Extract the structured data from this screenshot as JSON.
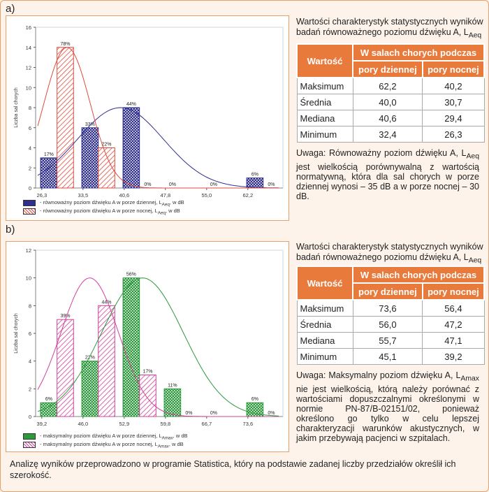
{
  "part_a_label": "a)",
  "part_b_label": "b)",
  "chart_data": [
    {
      "type": "bar",
      "ylabel": "Liczba sal chorych",
      "ylim": [
        0,
        16
      ],
      "yticks": [
        "0",
        "2",
        "4",
        "6",
        "8",
        "10",
        "12",
        "14",
        "16"
      ],
      "xticks": [
        "26,3",
        "33,5",
        "40,6",
        "47,8",
        "55,0",
        "62,2"
      ],
      "series": [
        {
          "name": "- równoważny poziom dźwięku A w porze dziennej, L",
          "name_sub": "Aeq",
          "name_suffix": ", w dB",
          "color": "#2f2f8f",
          "values": [
            3,
            6,
            8,
            0,
            0,
            1
          ],
          "labels": [
            "17%",
            "33%",
            "44%",
            "0%",
            "0%",
            "6%"
          ],
          "curve_mean": 40.0,
          "curve_sd": 7.5
        },
        {
          "name": "- równoważny poziom dźwięku A w porze nocnej, L",
          "name_sub": "Aeq",
          "name_suffix": ", w dB",
          "color": "#e04a3c",
          "values": [
            14,
            4,
            0,
            0,
            0,
            0
          ],
          "labels": [
            "78%",
            "22%",
            "0%",
            "0%",
            "0%",
            "0%"
          ],
          "curve_mean": 30.7,
          "curve_sd": 4.0
        }
      ],
      "x_bins": [
        26.3,
        33.5,
        40.6,
        47.8,
        55.0,
        62.2
      ]
    },
    {
      "type": "bar",
      "ylabel": "Liczba sal chorych",
      "ylim": [
        0,
        12
      ],
      "yticks": [
        "0",
        "2",
        "4",
        "6",
        "8",
        "10",
        "12"
      ],
      "xticks": [
        "39,2",
        "46,0",
        "52,9",
        "59,8",
        "66,7",
        "73,6"
      ],
      "series": [
        {
          "name": "- maksymalny poziom dźwięku A w porze dziennej, L",
          "name_sub": "Amax",
          "name_suffix": ", w dB",
          "color": "#2a9a3a",
          "values": [
            1,
            4,
            10,
            2,
            0,
            1
          ],
          "labels": [
            "6%",
            "22%",
            "56%",
            "11%",
            "0%",
            "6%"
          ],
          "curve_mean": 56.0,
          "curve_sd": 6.8
        },
        {
          "name": "- maksymalny poziom dźwięku A w porze nocnej, L",
          "name_sub": "Amax",
          "name_suffix": ", w dB",
          "color": "#d0409a",
          "values": [
            7,
            8,
            3,
            0,
            0,
            0
          ],
          "labels": [
            "39%",
            "44%",
            "17%",
            "0%",
            "0%",
            "0%"
          ],
          "curve_mean": 47.2,
          "curve_sd": 4.8
        }
      ],
      "x_bins": [
        39.2,
        46.0,
        52.9,
        59.8,
        66.7,
        73.6
      ]
    }
  ],
  "tables": [
    {
      "title_line1": "Wartości charakterystyk statystycznych wyników",
      "title_line2": "badań równoważnego poziomu dźwięku A, L",
      "title_sub": "Aeq",
      "header_col1": "Wartość",
      "header_group": "W salach chorych podczas",
      "header_day": "pory dziennej",
      "header_night": "pory nocnej",
      "rows": [
        {
          "label": "Maksimum",
          "day": "62,2",
          "night": "40,2"
        },
        {
          "label": "Średnia",
          "day": "40,0",
          "night": "30,7"
        },
        {
          "label": "Mediana",
          "day": "40,6",
          "night": "29,4"
        },
        {
          "label": "Minimum",
          "day": "32,4",
          "night": "26,3"
        }
      ],
      "note_pre": "Uwaga: Równoważny poziom dźwięku A, L",
      "note_sub": "Aeq",
      "note_post": " jest wielkością porównywalną z wartością normatywną, która dla sal chorych w porze dziennej wynosi – 35 dB a w porze nocnej – 30 dB."
    },
    {
      "title_line1": "Wartości charakterystyk statystycznych wyników",
      "title_line2": "badań równoważnego poziomu dźwięku A, L",
      "title_sub": "Aeq",
      "header_col1": "Wartość",
      "header_group": "W salach chorych podczas",
      "header_day": "pory dziennej",
      "header_night": "pory nocnej",
      "rows": [
        {
          "label": "Maksimum",
          "day": "73,6",
          "night": "56,4"
        },
        {
          "label": "Średnia",
          "day": "56,0",
          "night": "47,2"
        },
        {
          "label": "Mediana",
          "day": "55,7",
          "night": "47,1"
        },
        {
          "label": "Minimum",
          "day": "45,1",
          "night": "39,2"
        }
      ],
      "note_pre": "Uwaga: Maksymalny poziom dźwięku A, L",
      "note_sub": "Amax",
      "note_post": " nie jest wielkością, którą należy porównać z wartościami dopuszczalnymi określonymi w normie PN-87/B-02151/02, ponieważ określono go tylko w celu lepszej charakteryzacji warunków akustycznych, w jakim przebywają pacjenci w szpitalach."
    }
  ],
  "footer": "Analizę wyników przeprowadzono w programie Statistica, który na podstawie zadanej liczby przedziałów określił ich szerokość."
}
